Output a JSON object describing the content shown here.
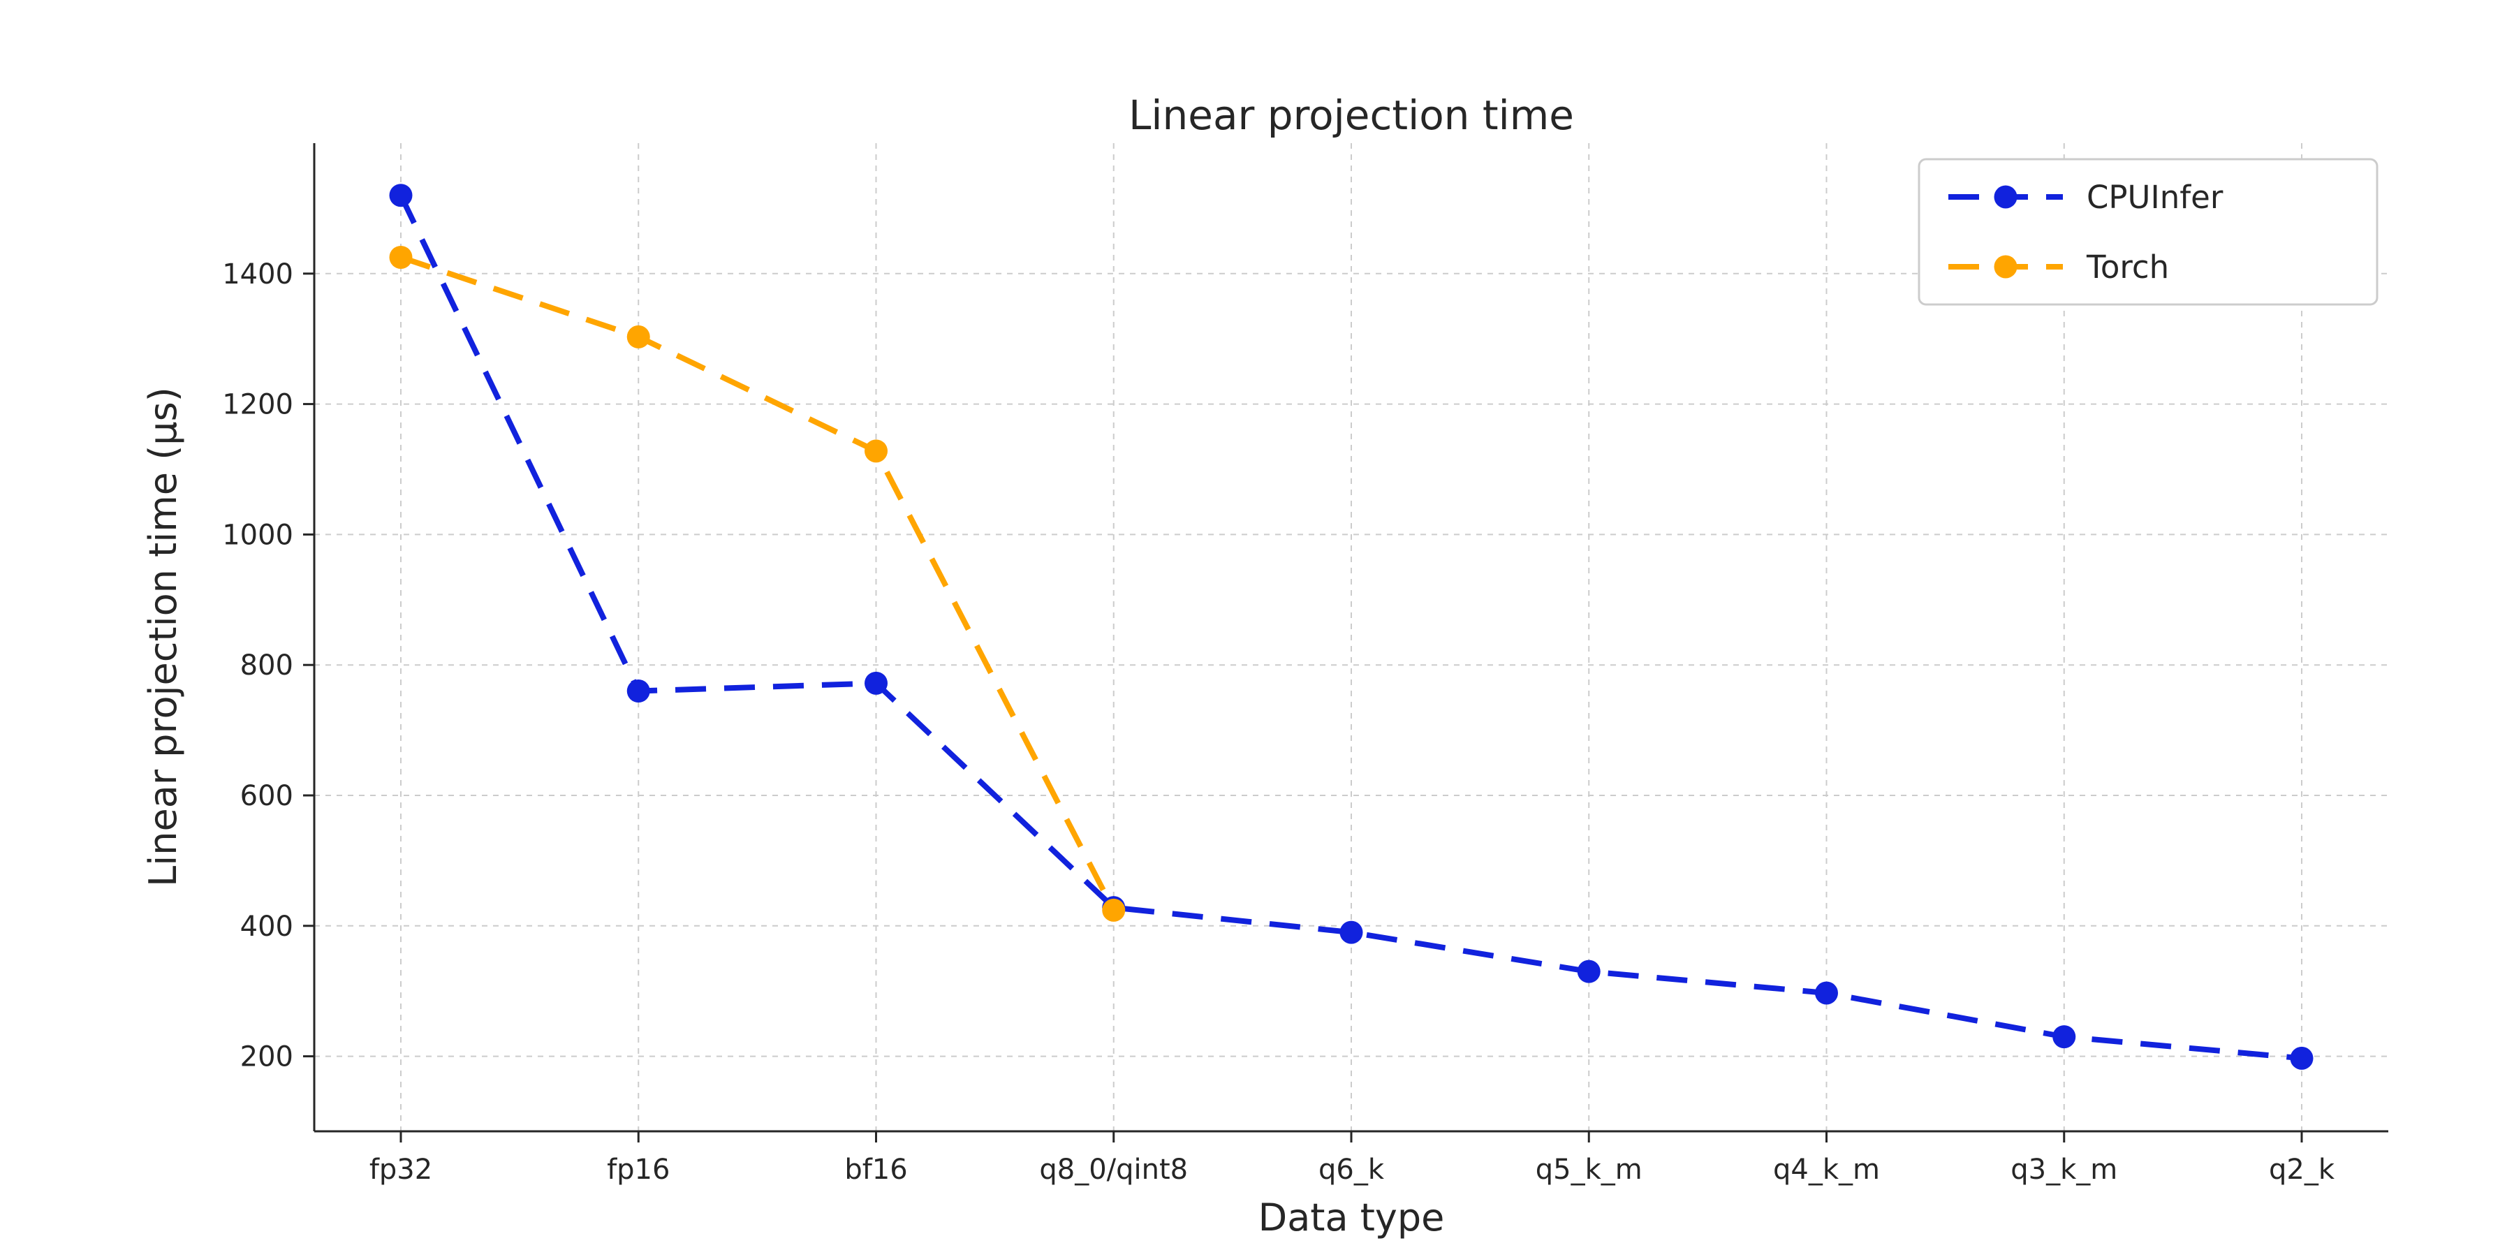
{
  "chart_data": {
    "type": "line",
    "title": "Linear projection time",
    "xlabel": "Data type",
    "ylabel": "Linear projection time (µs)",
    "categories": [
      "fp32",
      "fp16",
      "bf16",
      "q8_0/qint8",
      "q6_k",
      "q5_k_m",
      "q4_k_m",
      "q3_k_m",
      "q2_k"
    ],
    "series": [
      {
        "name": "CPUInfer",
        "color": "#1122dd",
        "values": [
          1520,
          760,
          772,
          428,
          390,
          330,
          297,
          230,
          197
        ]
      },
      {
        "name": "Torch",
        "color": "#FFA500",
        "values": [
          1425,
          1303,
          1128,
          424,
          null,
          null,
          null,
          null,
          null
        ]
      }
    ],
    "ylim": [
      85,
      1600
    ],
    "yticks": [
      200,
      400,
      600,
      800,
      1000,
      1200,
      1400
    ],
    "grid": true,
    "grid_style": "dashed",
    "line_style": "dashed",
    "marker": "circle",
    "legend_position": "upper right",
    "colors": {
      "grid": "#cccccc",
      "spine": "#262626",
      "text": "#262626",
      "legend_border": "#cccccc",
      "background": "#ffffff"
    }
  }
}
